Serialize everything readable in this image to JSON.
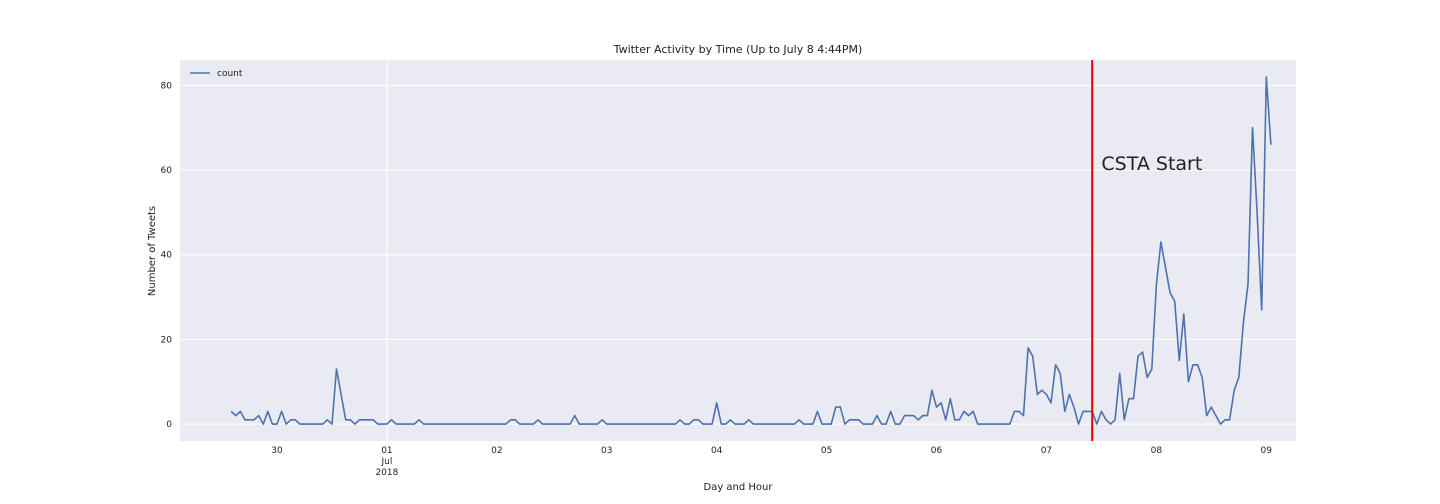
{
  "chart_data": {
    "type": "line",
    "title": "Twitter Activity by Time (Up to July 8 4:44PM)",
    "xlabel": "Day and Hour",
    "ylabel": "Number of Tweets",
    "ylim": [
      -4,
      86
    ],
    "xlim_hours": [
      -60,
      1144
    ],
    "grid": true,
    "legend_placement": "top-left",
    "x_ticks": [
      {
        "hours": 0,
        "label": "30"
      },
      {
        "hours": 24,
        "label": "01",
        "label2": "Jul",
        "label3": "2018"
      },
      {
        "hours": 48,
        "label": "02"
      },
      {
        "hours": 72,
        "label": "03"
      },
      {
        "hours": 96,
        "label": "04"
      },
      {
        "hours": 120,
        "label": "05"
      },
      {
        "hours": 144,
        "label": "06"
      },
      {
        "hours": 168,
        "label": "07"
      },
      {
        "hours": 192,
        "label": "08"
      },
      {
        "hours": 216,
        "label": "09"
      }
    ],
    "y_ticks": [
      0,
      20,
      40,
      60,
      80
    ],
    "series": [
      {
        "name": "count",
        "color": "#4c72b0",
        "x_start": "2018-06-29 14:00",
        "x_step_hours": 1,
        "values": [
          3,
          2,
          3,
          1,
          1,
          1,
          2,
          0,
          3,
          0,
          0,
          3,
          0,
          1,
          1,
          0,
          0,
          0,
          0,
          0,
          0,
          1,
          0,
          13,
          7,
          1,
          1,
          0,
          1,
          1,
          1,
          1,
          0,
          0,
          0,
          1,
          0,
          0,
          0,
          0,
          0,
          1,
          0,
          0,
          0,
          0,
          0,
          0,
          0,
          0,
          0,
          0,
          0,
          0,
          0,
          0,
          0,
          0,
          0,
          0,
          0,
          1,
          1,
          0,
          0,
          0,
          0,
          1,
          0,
          0,
          0,
          0,
          0,
          0,
          0,
          2,
          0,
          0,
          0,
          0,
          0,
          1,
          0,
          0,
          0,
          0,
          0,
          0,
          0,
          0,
          0,
          0,
          0,
          0,
          0,
          0,
          0,
          0,
          1,
          0,
          0,
          1,
          1,
          0,
          0,
          0,
          5,
          0,
          0,
          1,
          0,
          0,
          0,
          1,
          0,
          0,
          0,
          0,
          0,
          0,
          0,
          0,
          0,
          0,
          1,
          0,
          0,
          0,
          3,
          0,
          0,
          0,
          4,
          4,
          0,
          1,
          1,
          1,
          0,
          0,
          0,
          2,
          0,
          0,
          3,
          0,
          0,
          2,
          2,
          2,
          1,
          2,
          2,
          8,
          4,
          5,
          1,
          6,
          1,
          1,
          3,
          2,
          3,
          0,
          0,
          0,
          0,
          0,
          0,
          0,
          0,
          3,
          3,
          2,
          18,
          16,
          7,
          8,
          7,
          5,
          14,
          12,
          3,
          7,
          4,
          0,
          3,
          3,
          3,
          0,
          3,
          1,
          0,
          1,
          12,
          1,
          6,
          6,
          16,
          17,
          11,
          13,
          33,
          43,
          37,
          31,
          29,
          15,
          26,
          10,
          14,
          14,
          11,
          2,
          4,
          2,
          0,
          1,
          1,
          8,
          11,
          24,
          33,
          70,
          50,
          27,
          82,
          66
        ]
      }
    ],
    "annotations": [
      {
        "type": "vline",
        "x": "2018-07-07 10:00",
        "color": "#e00000"
      },
      {
        "type": "text",
        "text": "CSTA Start",
        "x": "2018-07-07 12:00",
        "y": 60
      }
    ]
  }
}
